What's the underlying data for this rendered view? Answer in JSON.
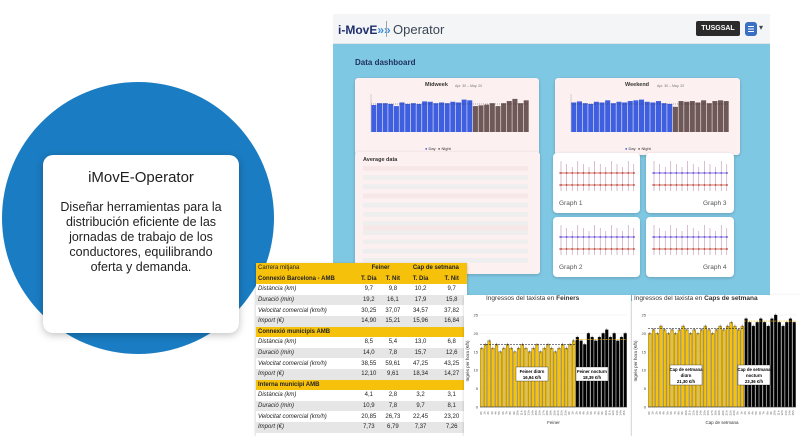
{
  "promo": {
    "title": "iMovE-Operator",
    "description": "Diseñar herramientas para la distribución eficiente de las jornadas de trabajo de los conductores, equilibrando oferta y demanda."
  },
  "app": {
    "logo_text": "i-MovE",
    "logo_arrows": "»»",
    "title": "Operator",
    "brand": "TUSGSAL",
    "menu_chevron": "▾",
    "dashboard_title": "Data dashboard",
    "panels": {
      "midweek": {
        "title": "Midweek",
        "date": "Apr. 30 – May. 20",
        "legend_day": "Day",
        "legend_night": "Night"
      },
      "weekend": {
        "title": "Weekend",
        "date": "Apr. 30 – May. 20",
        "legend_day": "Day",
        "legend_night": "Night"
      },
      "average": {
        "title": "Average data"
      }
    },
    "graphs": [
      "Graph 1",
      "Graph 3",
      "Graph 2",
      "Graph 4"
    ]
  },
  "table": {
    "header_left": "Carrera mitjana",
    "weekday_label": "Feiner",
    "weekend_label": "Cap de setmana",
    "section1": "Connexió Barcelona - AMB",
    "col_day": "T. Dia",
    "col_night": "T. Nit",
    "sections": [
      {
        "title": "",
        "rows": [
          {
            "label": "Distància (km)",
            "values": [
              "9,7",
              "9,8",
              "10,2",
              "9,7"
            ]
          },
          {
            "label": "Duració (min)",
            "values": [
              "19,2",
              "16,1",
              "17,9",
              "15,8"
            ]
          },
          {
            "label": "Velocitat comercial (km/h)",
            "values": [
              "30,25",
              "37,07",
              "34,57",
              "37,82"
            ]
          },
          {
            "label": "Import (€)",
            "values": [
              "14,90",
              "15,21",
              "15,96",
              "16,84"
            ]
          }
        ]
      },
      {
        "title": "Connexió municipis AMB",
        "rows": [
          {
            "label": "Distància (km)",
            "values": [
              "8,5",
              "5,4",
              "13,0",
              "6,8"
            ]
          },
          {
            "label": "Duració (min)",
            "values": [
              "14,0",
              "7,8",
              "15,7",
              "12,6"
            ]
          },
          {
            "label": "Velocitat comercial (km/h)",
            "values": [
              "38,55",
              "59,61",
              "47,25",
              "43,25"
            ]
          },
          {
            "label": "Import (€)",
            "values": [
              "12,10",
              "9,61",
              "18,34",
              "14,27"
            ]
          }
        ]
      },
      {
        "title": "Interna municipi AMB",
        "rows": [
          {
            "label": "Distància (km)",
            "values": [
              "4,1",
              "2,8",
              "3,2",
              "3,1"
            ]
          },
          {
            "label": "Duració (min)",
            "values": [
              "10,9",
              "7,8",
              "9,7",
              "8,1"
            ]
          },
          {
            "label": "Velocitat comercial (km/h)",
            "values": [
              "20,85",
              "26,73",
              "22,45",
              "23,20"
            ]
          },
          {
            "label": "Import (€)",
            "values": [
              "7,73",
              "6,79",
              "7,37",
              "7,26"
            ]
          }
        ]
      }
    ]
  },
  "charts": {
    "weekday": {
      "title_prefix": "Ingressos del taxista en ",
      "title_bold": "Feiners",
      "ylabel": "Ingrés per hora (€/h)",
      "xlabel": "Feiner",
      "ann_day": "Feiner diürn\n16,94 €/h",
      "ann_night": "Feiner nocturn\n18,39 €/h",
      "avg_day": 16.94,
      "avg_night": 18.39
    },
    "weekend": {
      "title_prefix": "Ingressos del taxista en ",
      "title_bold": "Caps de setmana",
      "ylabel": "Ingrés per hora (€/h)",
      "xlabel": "Cap de setmana",
      "ann_day": "Cap de setmana\ndiürn\n21,30 €/h",
      "ann_night": "Cap de setmana\nnocturn\n23,36 €/h",
      "avg_day": 21.3,
      "avg_night": 23.36
    },
    "ylim": [
      0,
      25
    ],
    "yticks": [
      "0",
      "5",
      "10",
      "15",
      "20",
      "25"
    ]
  },
  "colors": {
    "blue": "#1a7cc2",
    "accent_yellow": "#f6c10a",
    "bar_day": "#3d5fe0",
    "bar_night": "#6e5858",
    "sky": "#7fc8e4"
  }
}
